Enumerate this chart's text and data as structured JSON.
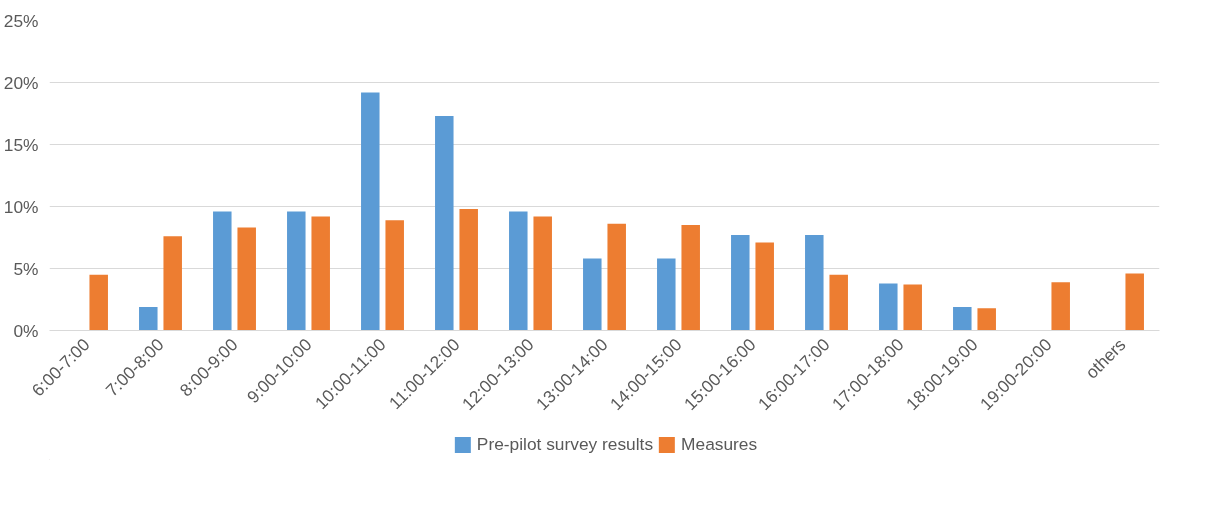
{
  "chart_data": {
    "type": "bar",
    "categories": [
      "6:00-7:00",
      "7:00-8:00",
      "8:00-9:00",
      "9:00-10:00",
      "10:00-11:00",
      "11:00-12:00",
      "12:00-13:00",
      "13:00-14:00",
      "14:00-15:00",
      "15:00-16:00",
      "16:00-17:00",
      "17:00-18:00",
      "18:00-19:00",
      "19:00-20:00",
      "others"
    ],
    "series": [
      {
        "name": "Pre-pilot survey results",
        "color": "#5b9bd5",
        "values": [
          0,
          1.9,
          9.6,
          9.6,
          19.2,
          17.3,
          9.6,
          5.8,
          5.8,
          7.7,
          7.7,
          3.8,
          1.9,
          0,
          0
        ]
      },
      {
        "name": "Measures",
        "color": "#ed7d31",
        "values": [
          4.5,
          7.6,
          8.3,
          9.2,
          8.9,
          9.8,
          9.2,
          8.6,
          8.5,
          7.1,
          4.5,
          3.7,
          1.8,
          3.9,
          4.6
        ]
      }
    ],
    "ylim": [
      0,
      25
    ],
    "yticks": [
      {
        "value": 0,
        "label": "0%"
      },
      {
        "value": 5,
        "label": "5%"
      },
      {
        "value": 10,
        "label": "10%"
      },
      {
        "value": 15,
        "label": "15%"
      },
      {
        "value": 20,
        "label": "20%"
      },
      {
        "value": 25,
        "label": "25%"
      }
    ],
    "grid": "y",
    "legend": "bottom"
  }
}
